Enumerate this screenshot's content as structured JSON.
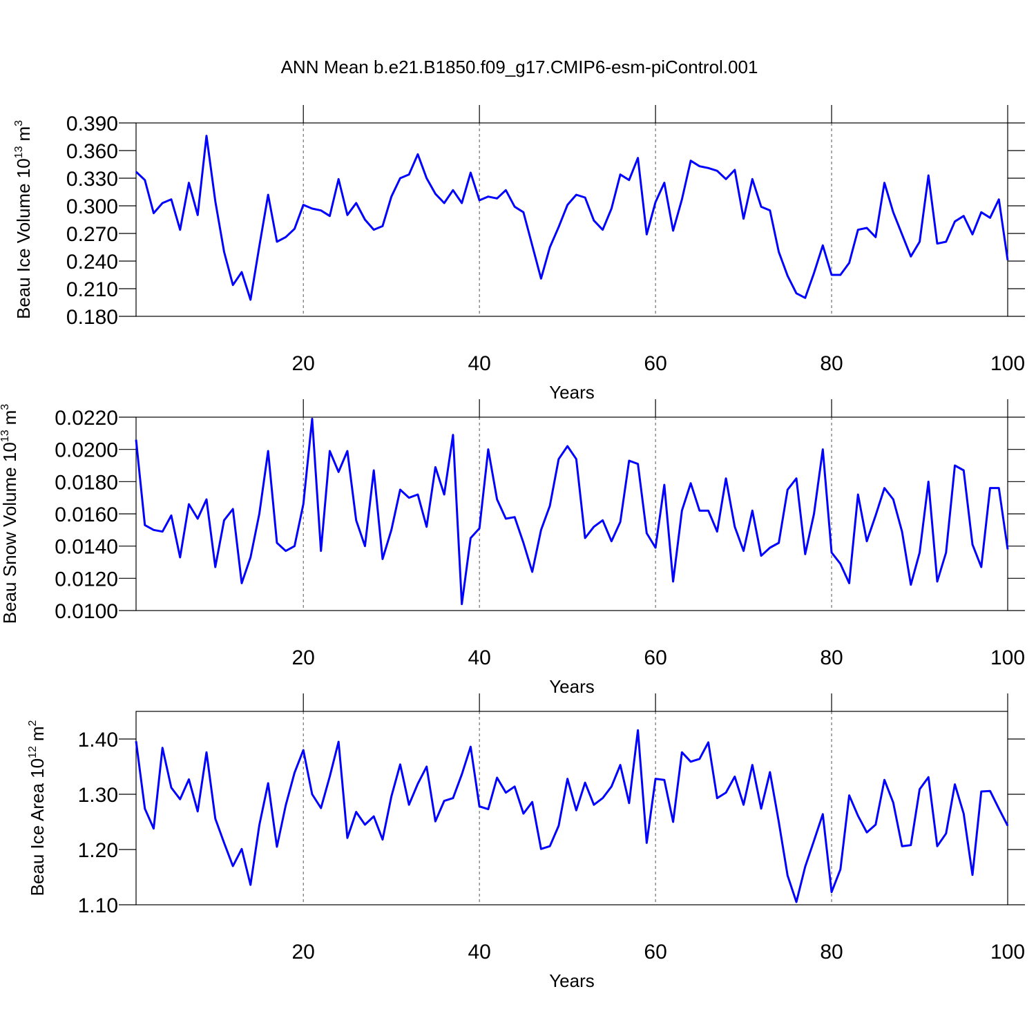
{
  "title": "ANN Mean b.e21.B1850.f09_g17.CMIP6-esm-piControl.001",
  "chart_data": [
    {
      "type": "line",
      "xlabel": "Years",
      "ylabel": {
        "text": "Beau Ice Volume 10",
        "exponent": "13",
        "unit": "m",
        "unit_power": "3"
      },
      "color": "#0000ff",
      "x": [
        1,
        2,
        3,
        4,
        5,
        6,
        7,
        8,
        9,
        10,
        11,
        12,
        13,
        14,
        15,
        16,
        17,
        18,
        19,
        20,
        21,
        22,
        23,
        24,
        25,
        26,
        27,
        28,
        29,
        30,
        31,
        32,
        33,
        34,
        35,
        36,
        37,
        38,
        39,
        40,
        41,
        42,
        43,
        44,
        45,
        46,
        47,
        48,
        49,
        50,
        51,
        52,
        53,
        54,
        55,
        56,
        57,
        58,
        59,
        60,
        61,
        62,
        63,
        64,
        65,
        66,
        67,
        68,
        69,
        70,
        71,
        72,
        73,
        74,
        75,
        76,
        77,
        78,
        79,
        80,
        81,
        82,
        83,
        84,
        85,
        86,
        87,
        88,
        89,
        90,
        91,
        92,
        93,
        94,
        95,
        96,
        97,
        98,
        99,
        100
      ],
      "values": [
        0.337,
        0.328,
        0.292,
        0.303,
        0.307,
        0.274,
        0.325,
        0.29,
        0.376,
        0.305,
        0.25,
        0.214,
        0.228,
        0.198,
        0.256,
        0.312,
        0.261,
        0.266,
        0.275,
        0.301,
        0.297,
        0.295,
        0.289,
        0.329,
        0.29,
        0.303,
        0.285,
        0.274,
        0.278,
        0.31,
        0.33,
        0.334,
        0.356,
        0.33,
        0.313,
        0.303,
        0.317,
        0.303,
        0.336,
        0.306,
        0.31,
        0.308,
        0.317,
        0.299,
        0.293,
        0.257,
        0.221,
        0.255,
        0.277,
        0.301,
        0.312,
        0.309,
        0.284,
        0.274,
        0.297,
        0.334,
        0.328,
        0.352,
        0.269,
        0.304,
        0.325,
        0.273,
        0.307,
        0.349,
        0.343,
        0.341,
        0.338,
        0.329,
        0.339,
        0.286,
        0.329,
        0.299,
        0.295,
        0.25,
        0.224,
        0.205,
        0.2,
        0.227,
        0.257,
        0.225,
        0.225,
        0.238,
        0.274,
        0.276,
        0.266,
        0.325,
        0.293,
        0.269,
        0.245,
        0.261,
        0.333,
        0.259,
        0.261,
        0.283,
        0.289,
        0.269,
        0.293,
        0.287,
        0.307,
        0.241
      ],
      "xlim": [
        1,
        100
      ],
      "xticks": [
        20,
        40,
        60,
        80,
        100
      ],
      "ylim": [
        0.18,
        0.39
      ],
      "yticks": [
        {
          "value": 0.18,
          "label": "0.180"
        },
        {
          "value": 0.21,
          "label": "0.210"
        },
        {
          "value": 0.24,
          "label": "0.240"
        },
        {
          "value": 0.27,
          "label": "0.270"
        },
        {
          "value": 0.3,
          "label": "0.300"
        },
        {
          "value": 0.33,
          "label": "0.330"
        },
        {
          "value": 0.36,
          "label": "0.360"
        },
        {
          "value": 0.39,
          "label": "0.390"
        }
      ],
      "grid": true
    },
    {
      "type": "line",
      "xlabel": "Years",
      "ylabel": {
        "text": "Beau Snow Volume 10",
        "exponent": "13",
        "unit": "m",
        "unit_power": "3"
      },
      "color": "#0000ff",
      "x": [
        1,
        2,
        3,
        4,
        5,
        6,
        7,
        8,
        9,
        10,
        11,
        12,
        13,
        14,
        15,
        16,
        17,
        18,
        19,
        20,
        21,
        22,
        23,
        24,
        25,
        26,
        27,
        28,
        29,
        30,
        31,
        32,
        33,
        34,
        35,
        36,
        37,
        38,
        39,
        40,
        41,
        42,
        43,
        44,
        45,
        46,
        47,
        48,
        49,
        50,
        51,
        52,
        53,
        54,
        55,
        56,
        57,
        58,
        59,
        60,
        61,
        62,
        63,
        64,
        65,
        66,
        67,
        68,
        69,
        70,
        71,
        72,
        73,
        74,
        75,
        76,
        77,
        78,
        79,
        80,
        81,
        82,
        83,
        84,
        85,
        86,
        87,
        88,
        89,
        90,
        91,
        92,
        93,
        94,
        95,
        96,
        97,
        98,
        99,
        100
      ],
      "values": [
        0.0206,
        0.0153,
        0.015,
        0.0149,
        0.0159,
        0.0133,
        0.0166,
        0.0157,
        0.0169,
        0.0127,
        0.0156,
        0.0163,
        0.0117,
        0.0133,
        0.016,
        0.0199,
        0.0142,
        0.0137,
        0.014,
        0.0166,
        0.0219,
        0.0137,
        0.0199,
        0.0186,
        0.0199,
        0.0156,
        0.014,
        0.0187,
        0.0132,
        0.015,
        0.0175,
        0.017,
        0.0172,
        0.0152,
        0.0189,
        0.0172,
        0.0209,
        0.0104,
        0.0145,
        0.0151,
        0.02,
        0.0169,
        0.0157,
        0.0158,
        0.0142,
        0.0124,
        0.015,
        0.0165,
        0.0194,
        0.0202,
        0.0194,
        0.0145,
        0.0152,
        0.0156,
        0.0143,
        0.0155,
        0.0193,
        0.0191,
        0.0148,
        0.0139,
        0.0178,
        0.0118,
        0.0162,
        0.0179,
        0.0162,
        0.0162,
        0.0149,
        0.0182,
        0.0152,
        0.0137,
        0.0162,
        0.0134,
        0.0139,
        0.0142,
        0.0175,
        0.0182,
        0.0135,
        0.016,
        0.02,
        0.0136,
        0.0129,
        0.0117,
        0.0172,
        0.0143,
        0.0159,
        0.0176,
        0.0169,
        0.0149,
        0.0116,
        0.0136,
        0.018,
        0.0118,
        0.0136,
        0.019,
        0.0187,
        0.0141,
        0.0127,
        0.0176,
        0.0176,
        0.0138
      ],
      "xlim": [
        1,
        100
      ],
      "xticks": [
        20,
        40,
        60,
        80,
        100
      ],
      "ylim": [
        0.01,
        0.022
      ],
      "yticks": [
        {
          "value": 0.01,
          "label": "0.0100"
        },
        {
          "value": 0.012,
          "label": "0.0120"
        },
        {
          "value": 0.014,
          "label": "0.0140"
        },
        {
          "value": 0.016,
          "label": "0.0160"
        },
        {
          "value": 0.018,
          "label": "0.0180"
        },
        {
          "value": 0.02,
          "label": "0.0200"
        },
        {
          "value": 0.022,
          "label": "0.0220"
        }
      ],
      "grid": true
    },
    {
      "type": "line",
      "xlabel": "Years",
      "ylabel": {
        "text": "Beau Ice Area 10",
        "exponent": "12",
        "unit": "m",
        "unit_power": "2"
      },
      "color": "#0000ff",
      "x": [
        1,
        2,
        3,
        4,
        5,
        6,
        7,
        8,
        9,
        10,
        11,
        12,
        13,
        14,
        15,
        16,
        17,
        18,
        19,
        20,
        21,
        22,
        23,
        24,
        25,
        26,
        27,
        28,
        29,
        30,
        31,
        32,
        33,
        34,
        35,
        36,
        37,
        38,
        39,
        40,
        41,
        42,
        43,
        44,
        45,
        46,
        47,
        48,
        49,
        50,
        51,
        52,
        53,
        54,
        55,
        56,
        57,
        58,
        59,
        60,
        61,
        62,
        63,
        64,
        65,
        66,
        67,
        68,
        69,
        70,
        71,
        72,
        73,
        74,
        75,
        76,
        77,
        78,
        79,
        80,
        81,
        82,
        83,
        84,
        85,
        86,
        87,
        88,
        89,
        90,
        91,
        92,
        93,
        94,
        95,
        96,
        97,
        98,
        99,
        100
      ],
      "values": [
        1.396,
        1.274,
        1.238,
        1.384,
        1.312,
        1.291,
        1.327,
        1.269,
        1.376,
        1.256,
        1.212,
        1.17,
        1.201,
        1.136,
        1.244,
        1.32,
        1.205,
        1.28,
        1.339,
        1.38,
        1.3,
        1.275,
        1.332,
        1.395,
        1.221,
        1.268,
        1.245,
        1.26,
        1.218,
        1.296,
        1.354,
        1.281,
        1.319,
        1.35,
        1.251,
        1.288,
        1.293,
        1.336,
        1.386,
        1.278,
        1.273,
        1.33,
        1.303,
        1.314,
        1.265,
        1.286,
        1.201,
        1.206,
        1.243,
        1.328,
        1.271,
        1.321,
        1.281,
        1.293,
        1.314,
        1.353,
        1.284,
        1.416,
        1.212,
        1.328,
        1.326,
        1.25,
        1.376,
        1.359,
        1.364,
        1.394,
        1.293,
        1.303,
        1.332,
        1.281,
        1.353,
        1.274,
        1.34,
        1.25,
        1.153,
        1.105,
        1.169,
        1.216,
        1.264,
        1.123,
        1.164,
        1.298,
        1.261,
        1.231,
        1.245,
        1.326,
        1.285,
        1.206,
        1.208,
        1.309,
        1.331,
        1.206,
        1.229,
        1.318,
        1.265,
        1.154,
        1.305,
        1.306,
        1.274,
        1.243
      ],
      "xlim": [
        1,
        100
      ],
      "xticks": [
        20,
        40,
        60,
        80,
        100
      ],
      "ylim": [
        1.1,
        1.45
      ],
      "yticks": [
        {
          "value": 1.1,
          "label": "1.10"
        },
        {
          "value": 1.2,
          "label": "1.20"
        },
        {
          "value": 1.3,
          "label": "1.30"
        },
        {
          "value": 1.4,
          "label": "1.40"
        }
      ],
      "grid": true
    }
  ]
}
